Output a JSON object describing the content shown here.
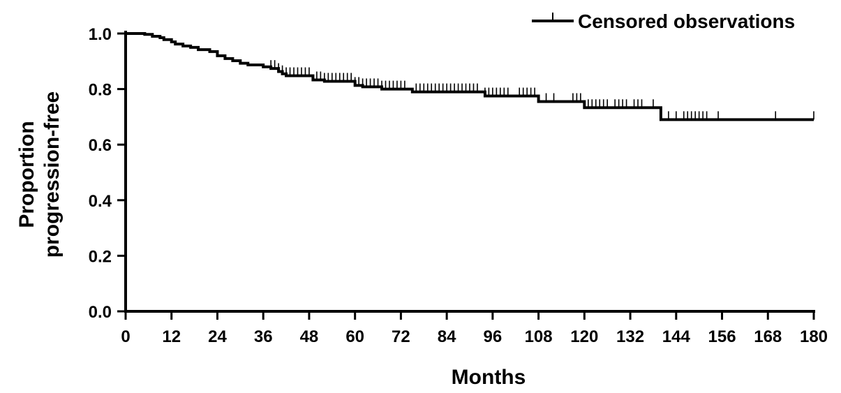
{
  "chart_data": {
    "type": "line",
    "subtype": "kaplan-meier",
    "title": "",
    "xlabel": "Months",
    "ylabel_lines": [
      "Proportion",
      "progression-free"
    ],
    "xlim": [
      0,
      180
    ],
    "ylim": [
      0,
      1
    ],
    "xticks": [
      0,
      12,
      24,
      36,
      48,
      60,
      72,
      84,
      96,
      108,
      120,
      132,
      144,
      156,
      168,
      180
    ],
    "yticks": [
      0,
      0.2,
      0.4,
      0.6,
      0.8,
      1.0
    ],
    "xtick_labels": [
      "0",
      "12",
      "24",
      "36",
      "48",
      "60",
      "72",
      "84",
      "96",
      "108",
      "120",
      "132",
      "144",
      "156",
      "168",
      "180"
    ],
    "ytick_labels": [
      "0.0",
      "0.2",
      "0.4",
      "0.6",
      "0.8",
      "1.0"
    ],
    "grid": false,
    "legend": {
      "position": "top-right",
      "entries": [
        {
          "label": "Censored observations",
          "marker": "tick"
        }
      ]
    },
    "series": [
      {
        "color": "#000000",
        "step_points": [
          [
            0,
            1.0
          ],
          [
            5,
            0.997
          ],
          [
            7,
            0.99
          ],
          [
            9,
            0.985
          ],
          [
            10,
            0.978
          ],
          [
            12,
            0.97
          ],
          [
            13,
            0.962
          ],
          [
            15,
            0.955
          ],
          [
            17,
            0.95
          ],
          [
            19,
            0.942
          ],
          [
            22,
            0.935
          ],
          [
            24,
            0.92
          ],
          [
            26,
            0.91
          ],
          [
            28,
            0.902
          ],
          [
            30,
            0.893
          ],
          [
            32,
            0.887
          ],
          [
            36,
            0.88
          ],
          [
            38,
            0.874
          ],
          [
            40,
            0.863
          ],
          [
            41,
            0.855
          ],
          [
            42,
            0.848
          ],
          [
            49,
            0.833
          ],
          [
            52,
            0.828
          ],
          [
            60,
            0.813
          ],
          [
            62,
            0.808
          ],
          [
            67,
            0.8
          ],
          [
            75,
            0.79
          ],
          [
            94,
            0.775
          ],
          [
            108,
            0.755
          ],
          [
            120,
            0.733
          ],
          [
            140,
            0.69
          ],
          [
            180,
            0.69
          ]
        ],
        "censored_x": [
          38,
          39,
          40,
          41,
          42,
          43,
          44,
          45,
          46,
          47,
          48,
          50,
          51,
          52,
          53,
          54,
          55,
          56,
          57,
          58,
          59,
          60,
          61,
          62,
          63,
          64,
          65,
          66,
          67,
          68,
          69,
          70,
          71,
          72,
          73,
          76,
          77,
          78,
          79,
          80,
          81,
          82,
          83,
          84,
          85,
          86,
          87,
          88,
          89,
          90,
          91,
          92,
          94,
          95,
          96,
          97,
          98,
          99,
          100,
          103,
          104,
          105,
          106,
          107,
          110,
          112,
          117,
          118,
          119,
          121,
          122,
          123,
          124,
          125,
          126,
          128,
          129,
          130,
          131,
          133,
          134,
          135,
          138,
          142,
          144,
          146,
          147,
          148,
          149,
          150,
          151,
          152,
          155,
          170,
          180
        ]
      }
    ]
  }
}
